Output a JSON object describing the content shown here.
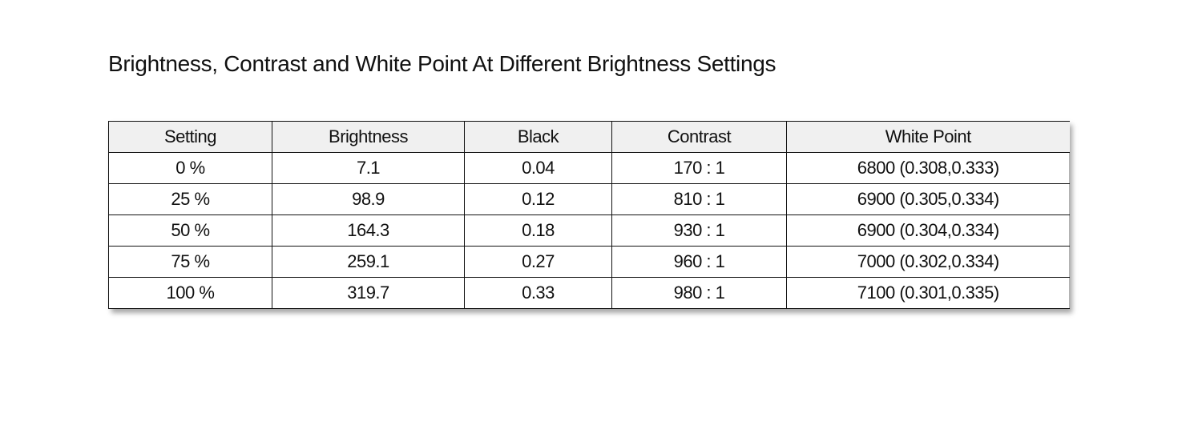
{
  "title": "Brightness, Contrast and White Point At Different Brightness Settings",
  "table": {
    "headers": [
      "Setting",
      "Brightness",
      "Black",
      "Contrast",
      "White Point"
    ],
    "rows": [
      [
        "0 %",
        "7.1",
        "0.04",
        "170 : 1",
        "6800 (0.308,0.333)"
      ],
      [
        "25 %",
        "98.9",
        "0.12",
        "810 : 1",
        "6900 (0.305,0.334)"
      ],
      [
        "50 %",
        "164.3",
        "0.18",
        "930 : 1",
        "6900 (0.304,0.334)"
      ],
      [
        "75 %",
        "259.1",
        "0.27",
        "960 : 1",
        "7000 (0.302,0.334)"
      ],
      [
        "100 %",
        "319.7",
        "0.33",
        "980 : 1",
        "7100 (0.301,0.335)"
      ]
    ]
  },
  "colors": {
    "header_bg": "#f0f0f0",
    "border": "#111111"
  }
}
